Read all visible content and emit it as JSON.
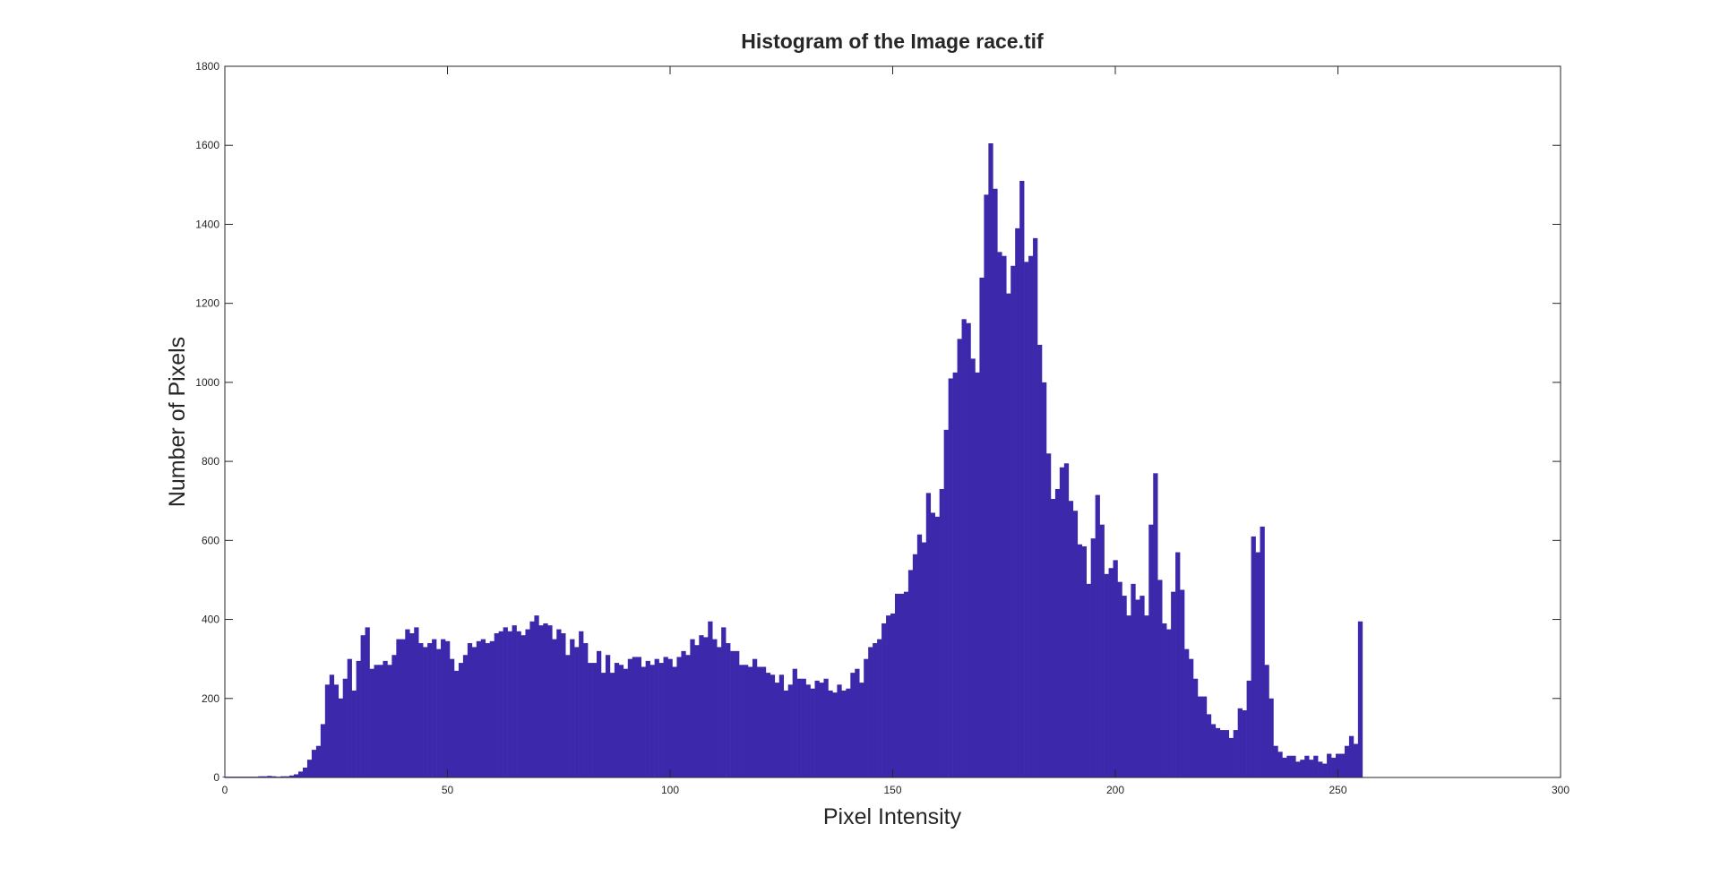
{
  "chart_data": {
    "type": "bar",
    "title": "Histogram of the Image race.tif",
    "xlabel": "Pixel Intensity",
    "ylabel": "Number of Pixels",
    "color": "#3c28aa",
    "xlim": [
      0,
      300
    ],
    "xticks": [
      0,
      50,
      100,
      150,
      200,
      250,
      300
    ],
    "ylim": [
      0,
      1800
    ],
    "yticks": [
      0,
      200,
      400,
      600,
      800,
      1000,
      1200,
      1400,
      1600,
      1800
    ],
    "x": [
      0,
      1,
      2,
      3,
      4,
      5,
      6,
      7,
      8,
      9,
      10,
      11,
      12,
      13,
      14,
      15,
      16,
      17,
      18,
      19,
      20,
      21,
      22,
      23,
      24,
      25,
      26,
      27,
      28,
      29,
      30,
      31,
      32,
      33,
      34,
      35,
      36,
      37,
      38,
      39,
      40,
      41,
      42,
      43,
      44,
      45,
      46,
      47,
      48,
      49,
      50,
      51,
      52,
      53,
      54,
      55,
      56,
      57,
      58,
      59,
      60,
      61,
      62,
      63,
      64,
      65,
      66,
      67,
      68,
      69,
      70,
      71,
      72,
      73,
      74,
      75,
      76,
      77,
      78,
      79,
      80,
      81,
      82,
      83,
      84,
      85,
      86,
      87,
      88,
      89,
      90,
      91,
      92,
      93,
      94,
      95,
      96,
      97,
      98,
      99,
      100,
      101,
      102,
      103,
      104,
      105,
      106,
      107,
      108,
      109,
      110,
      111,
      112,
      113,
      114,
      115,
      116,
      117,
      118,
      119,
      120,
      121,
      122,
      123,
      124,
      125,
      126,
      127,
      128,
      129,
      130,
      131,
      132,
      133,
      134,
      135,
      136,
      137,
      138,
      139,
      140,
      141,
      142,
      143,
      144,
      145,
      146,
      147,
      148,
      149,
      150,
      151,
      152,
      153,
      154,
      155,
      156,
      157,
      158,
      159,
      160,
      161,
      162,
      163,
      164,
      165,
      166,
      167,
      168,
      169,
      170,
      171,
      172,
      173,
      174,
      175,
      176,
      177,
      178,
      179,
      180,
      181,
      182,
      183,
      184,
      185,
      186,
      187,
      188,
      189,
      190,
      191,
      192,
      193,
      194,
      195,
      196,
      197,
      198,
      199,
      200,
      201,
      202,
      203,
      204,
      205,
      206,
      207,
      208,
      209,
      210,
      211,
      212,
      213,
      214,
      215,
      216,
      217,
      218,
      219,
      220,
      221,
      222,
      223,
      224,
      225,
      226,
      227,
      228,
      229,
      230,
      231,
      232,
      233,
      234,
      235,
      236,
      237,
      238,
      239,
      240,
      241,
      242,
      243,
      244,
      245,
      246,
      247,
      248,
      249,
      250,
      251,
      252,
      253,
      254,
      255
    ],
    "values": [
      2,
      2,
      2,
      2,
      2,
      2,
      2,
      2,
      3,
      3,
      4,
      3,
      2,
      3,
      3,
      5,
      8,
      15,
      25,
      45,
      70,
      80,
      135,
      235,
      260,
      235,
      200,
      250,
      300,
      220,
      295,
      360,
      380,
      275,
      285,
      285,
      295,
      285,
      310,
      350,
      350,
      375,
      365,
      380,
      340,
      330,
      340,
      350,
      325,
      350,
      345,
      300,
      270,
      290,
      310,
      340,
      330,
      345,
      350,
      340,
      345,
      365,
      370,
      380,
      370,
      385,
      370,
      360,
      375,
      395,
      410,
      385,
      390,
      385,
      350,
      375,
      365,
      310,
      350,
      330,
      370,
      340,
      290,
      290,
      320,
      265,
      310,
      265,
      290,
      285,
      275,
      300,
      305,
      305,
      280,
      295,
      285,
      300,
      290,
      305,
      300,
      280,
      305,
      320,
      310,
      350,
      335,
      360,
      355,
      395,
      350,
      330,
      380,
      340,
      320,
      320,
      285,
      285,
      280,
      300,
      280,
      280,
      265,
      260,
      240,
      260,
      220,
      235,
      275,
      250,
      250,
      235,
      225,
      245,
      240,
      250,
      220,
      215,
      235,
      220,
      225,
      265,
      275,
      240,
      300,
      330,
      340,
      350,
      390,
      410,
      415,
      465,
      465,
      470,
      525,
      565,
      615,
      595,
      720,
      670,
      660,
      730,
      880,
      1010,
      1025,
      1110,
      1160,
      1150,
      1060,
      1025,
      1265,
      1475,
      1605,
      1490,
      1330,
      1320,
      1225,
      1295,
      1390,
      1510,
      1305,
      1320,
      1365,
      1095,
      1000,
      820,
      705,
      730,
      785,
      795,
      700,
      675,
      590,
      585,
      490,
      605,
      715,
      640,
      515,
      530,
      550,
      495,
      460,
      410,
      490,
      450,
      460,
      410,
      640,
      770,
      500,
      390,
      375,
      470,
      570,
      475,
      325,
      300,
      250,
      205,
      205,
      160,
      135,
      125,
      120,
      120,
      100,
      120,
      175,
      170,
      245,
      610,
      570,
      635,
      285,
      200,
      80,
      65,
      50,
      55,
      55,
      40,
      45,
      55,
      45,
      55,
      40,
      35,
      60,
      50,
      60,
      60,
      80,
      105,
      85,
      395
    ]
  }
}
